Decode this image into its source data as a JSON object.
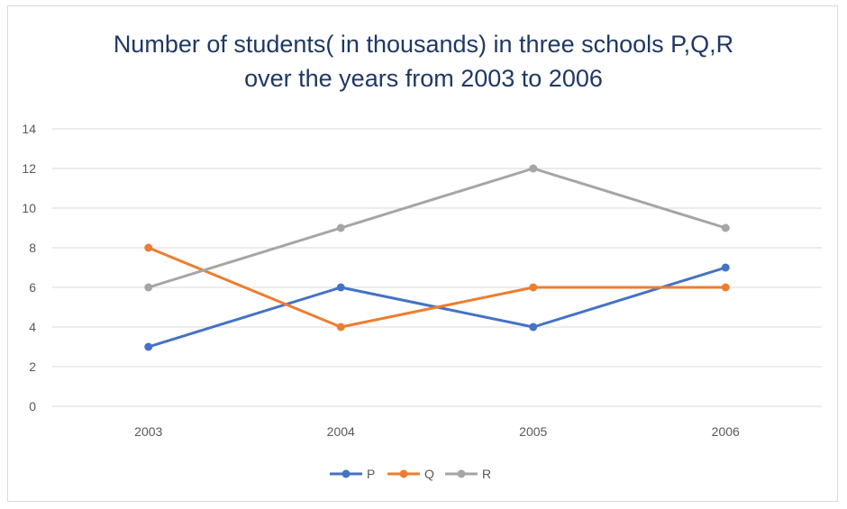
{
  "chart_data": {
    "type": "line",
    "title_line1": "Number of students( in thousands) in three schools P,Q,R",
    "title_line2": "over the years from 2003 to 2006",
    "categories": [
      "2003",
      "2004",
      "2005",
      "2006"
    ],
    "series": [
      {
        "name": "P",
        "color": "#4472c4",
        "values": [
          3,
          6,
          4,
          7
        ]
      },
      {
        "name": "Q",
        "color": "#ed7d31",
        "values": [
          8,
          4,
          6,
          6
        ]
      },
      {
        "name": "R",
        "color": "#a5a5a5",
        "values": [
          6,
          9,
          12,
          9
        ]
      }
    ],
    "ylim": [
      0,
      14
    ],
    "yticks": [
      "0",
      "2",
      "4",
      "6",
      "8",
      "10",
      "12",
      "14"
    ],
    "grid": true,
    "legend_position": "bottom"
  }
}
